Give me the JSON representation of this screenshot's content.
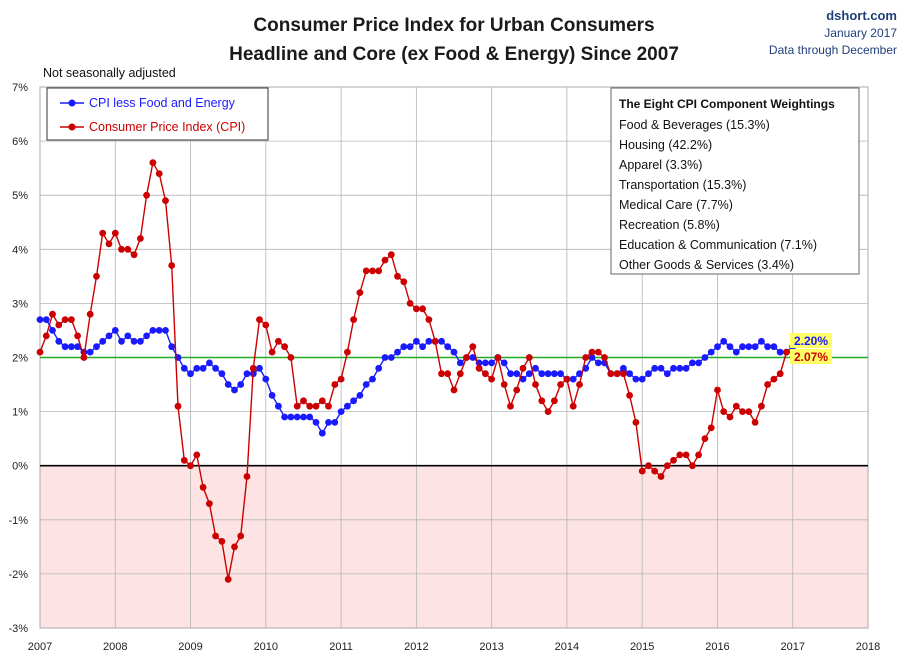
{
  "colors": {
    "core": "#1a1aff",
    "cpi": "#cc0000",
    "target": "#22aa22",
    "negative_fill": "#fde3e3",
    "label_bg": "#ffff66",
    "source_text": "#1f3f7a"
  },
  "chart_data": {
    "type": "line",
    "title": "Consumer Price Index for Urban Consumers",
    "subtitle": "Headline and Core (ex Food & Energy) Since 2007",
    "note": "Not seasonally adjusted",
    "source": {
      "site": "dshort.com",
      "date": "January 2017",
      "through": "Data through December"
    },
    "ylim": [
      -3,
      7
    ],
    "ytick_labels": [
      "-3%",
      "-2%",
      "-1%",
      "0%",
      "1%",
      "2%",
      "3%",
      "4%",
      "5%",
      "6%",
      "7%"
    ],
    "ytick_values": [
      -3,
      -2,
      -1,
      0,
      1,
      2,
      3,
      4,
      5,
      6,
      7
    ],
    "xlim": [
      2007,
      2018
    ],
    "xtick_labels": [
      "2007",
      "2008",
      "2009",
      "2010",
      "2011",
      "2012",
      "2013",
      "2014",
      "2015",
      "2016",
      "2017",
      "2018"
    ],
    "xtick_values": [
      2007,
      2008,
      2009,
      2010,
      2011,
      2012,
      2013,
      2014,
      2015,
      2016,
      2017,
      2018
    ],
    "reference_line": 2.0,
    "series": [
      {
        "name": "CPI less Food and Energy",
        "color": "#1a1aff",
        "start": 2007.0,
        "step_months": 1,
        "values": [
          2.7,
          2.7,
          2.5,
          2.3,
          2.2,
          2.2,
          2.2,
          2.1,
          2.1,
          2.2,
          2.3,
          2.4,
          2.5,
          2.3,
          2.4,
          2.3,
          2.3,
          2.4,
          2.5,
          2.5,
          2.5,
          2.2,
          2.0,
          1.8,
          1.7,
          1.8,
          1.8,
          1.9,
          1.8,
          1.7,
          1.5,
          1.4,
          1.5,
          1.7,
          1.7,
          1.8,
          1.6,
          1.3,
          1.1,
          0.9,
          0.9,
          0.9,
          0.9,
          0.9,
          0.8,
          0.6,
          0.8,
          0.8,
          1.0,
          1.1,
          1.2,
          1.3,
          1.5,
          1.6,
          1.8,
          2.0,
          2.0,
          2.1,
          2.2,
          2.2,
          2.3,
          2.2,
          2.3,
          2.3,
          2.3,
          2.2,
          2.1,
          1.9,
          2.0,
          2.0,
          1.9,
          1.9,
          1.9,
          2.0,
          1.9,
          1.7,
          1.7,
          1.6,
          1.7,
          1.8,
          1.7,
          1.7,
          1.7,
          1.7,
          1.6,
          1.6,
          1.7,
          1.8,
          2.0,
          1.9,
          1.9,
          1.7,
          1.7,
          1.8,
          1.7,
          1.6,
          1.6,
          1.7,
          1.8,
          1.8,
          1.7,
          1.8,
          1.8,
          1.8,
          1.9,
          1.9,
          2.0,
          2.1,
          2.2,
          2.3,
          2.2,
          2.1,
          2.2,
          2.2,
          2.2,
          2.3,
          2.2,
          2.2,
          2.1,
          2.1,
          2.2
        ]
      },
      {
        "name": "Consumer Price Index (CPI)",
        "color": "#cc0000",
        "start": 2007.0,
        "step_months": 1,
        "values": [
          2.1,
          2.4,
          2.8,
          2.6,
          2.7,
          2.7,
          2.4,
          2.0,
          2.8,
          3.5,
          4.3,
          4.1,
          4.3,
          4.0,
          4.0,
          3.9,
          4.2,
          5.0,
          5.6,
          5.4,
          4.9,
          3.7,
          1.1,
          0.1,
          0.0,
          0.2,
          -0.4,
          -0.7,
          -1.3,
          -1.4,
          -2.1,
          -1.5,
          -1.3,
          -0.2,
          1.8,
          2.7,
          2.6,
          2.1,
          2.3,
          2.2,
          2.0,
          1.1,
          1.2,
          1.1,
          1.1,
          1.2,
          1.1,
          1.5,
          1.6,
          2.1,
          2.7,
          3.2,
          3.6,
          3.6,
          3.6,
          3.8,
          3.9,
          3.5,
          3.4,
          3.0,
          2.9,
          2.9,
          2.7,
          2.3,
          1.7,
          1.7,
          1.4,
          1.7,
          2.0,
          2.2,
          1.8,
          1.7,
          1.6,
          2.0,
          1.5,
          1.1,
          1.4,
          1.8,
          2.0,
          1.5,
          1.2,
          1.0,
          1.2,
          1.5,
          1.6,
          1.1,
          1.5,
          2.0,
          2.1,
          2.1,
          2.0,
          1.7,
          1.7,
          1.7,
          1.3,
          0.8,
          -0.1,
          0.0,
          -0.1,
          -0.2,
          0.0,
          0.1,
          0.2,
          0.2,
          0.0,
          0.2,
          0.5,
          0.7,
          1.4,
          1.0,
          0.9,
          1.1,
          1.0,
          1.0,
          0.8,
          1.1,
          1.5,
          1.6,
          1.7,
          2.1
        ]
      }
    ],
    "end_labels": [
      "2.20%",
      "2.07%"
    ],
    "legend": [
      "CPI less Food and Energy",
      "Consumer Price Index (CPI)"
    ],
    "weights_box": {
      "title": "The Eight CPI Component Weightings",
      "items": [
        "Food & Beverages (15.3%)",
        "Housing (42.2%)",
        "Apparel (3.3%)",
        "Transportation (15.3%)",
        "Medical Care (7.7%)",
        "Recreation (5.8%)",
        "Education & Communication (7.1%)",
        "Other Goods & Services (3.4%)"
      ]
    }
  }
}
